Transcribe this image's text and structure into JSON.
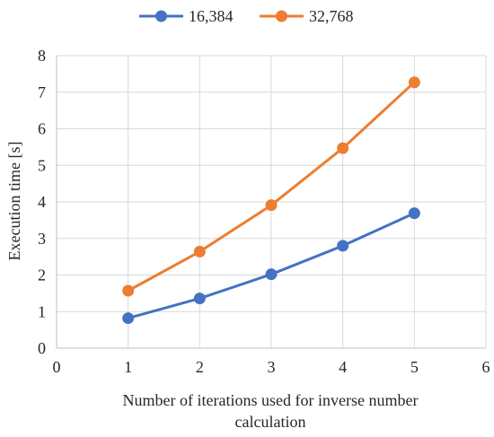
{
  "chart_data": {
    "type": "scatter",
    "xlabel_lines": [
      "Number of iterations used for inverse number",
      "calculation"
    ],
    "ylabel": "Execution time [s]",
    "xlim": [
      0,
      6
    ],
    "ylim": [
      0,
      8
    ],
    "x_ticks": [
      0,
      1,
      2,
      3,
      4,
      5,
      6
    ],
    "y_ticks": [
      0,
      1,
      2,
      3,
      4,
      5,
      6,
      7,
      8
    ],
    "grid": "vertical and horizontal",
    "legend_position": "top",
    "markers": true,
    "lines": true,
    "series": [
      {
        "name": "16,384",
        "color": "#4472c4",
        "x": [
          1,
          2,
          3,
          4,
          5
        ],
        "y": [
          0.82,
          1.36,
          2.02,
          2.8,
          3.69
        ]
      },
      {
        "name": "32,768",
        "color": "#ed7d31",
        "x": [
          1,
          2,
          3,
          4,
          5
        ],
        "y": [
          1.57,
          2.64,
          3.91,
          5.47,
          7.27
        ]
      }
    ]
  }
}
